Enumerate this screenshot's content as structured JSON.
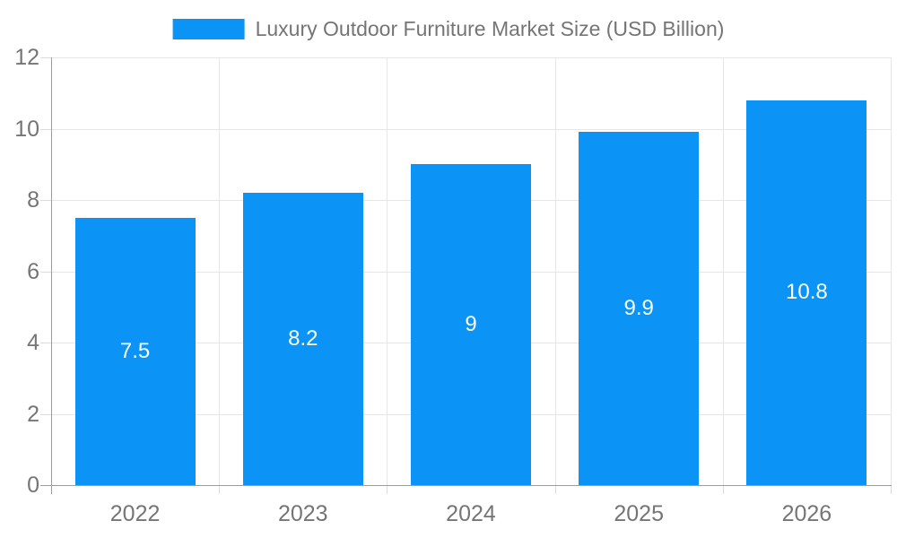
{
  "chart_data": {
    "type": "bar",
    "title": "Luxury Outdoor Furniture Market Size (USD Billion)",
    "categories": [
      "2022",
      "2023",
      "2024",
      "2025",
      "2026"
    ],
    "values": [
      7.5,
      8.2,
      9,
      9.9,
      10.8
    ],
    "value_labels": [
      "7.5",
      "8.2",
      "9",
      "9.9",
      "10.8"
    ],
    "xlabel": "",
    "ylabel": "",
    "ylim": [
      0,
      12
    ],
    "yticks": [
      0,
      2,
      4,
      6,
      8,
      10,
      12
    ],
    "grid": true,
    "legend_position": "top-center",
    "value_label_position": "inside-center",
    "colors": {
      "bar": "#0b93f6",
      "grid": "#e6e6e6",
      "axis": "#9c9c9c",
      "tick": "#dcdcdc",
      "label_text": "#757575",
      "value_text": "#ffffff",
      "background": "#ffffff"
    }
  }
}
